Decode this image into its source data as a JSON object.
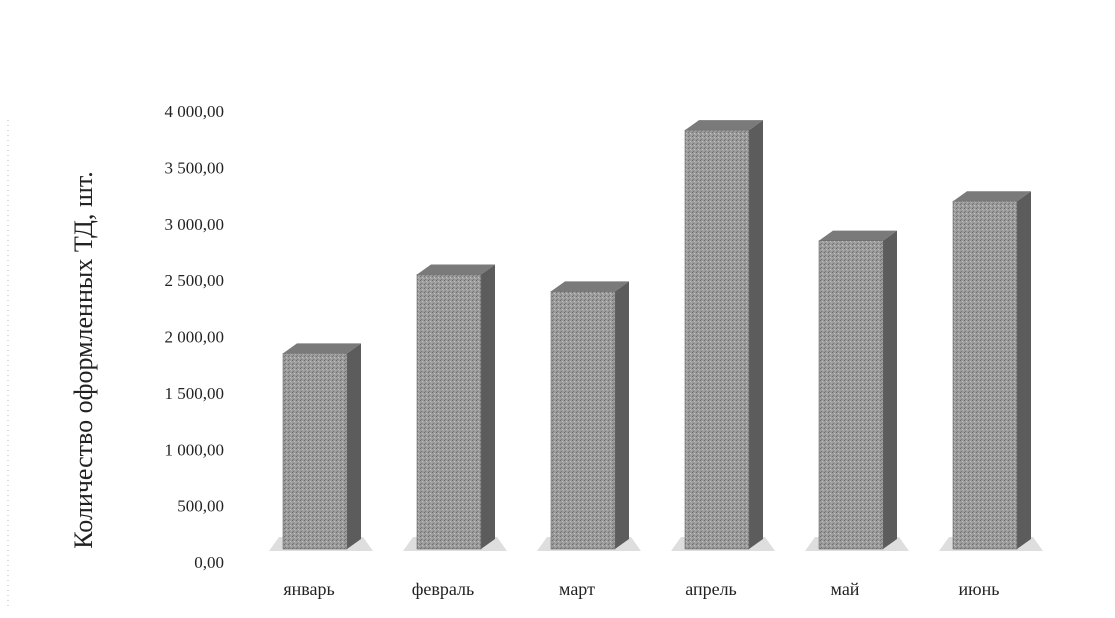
{
  "chart_data": {
    "type": "bar",
    "categories": [
      "январь",
      "февраль",
      "март",
      "апрель",
      "май",
      "июнь"
    ],
    "values": [
      1850,
      2550,
      2400,
      3830,
      2850,
      3200
    ],
    "ylabel": "Количество оформленных ТД, шт.",
    "yticks": [
      "0,00",
      "500,00",
      "1 000,00",
      "1 500,00",
      "2 000,00",
      "2 500,00",
      "3 000,00",
      "3 500,00",
      "4 000,00"
    ],
    "ylim": [
      0,
      4000
    ],
    "grid": false,
    "legend": "none",
    "colors": {
      "front": "#9a9a9a",
      "side": "#5c5c5c",
      "top": "#7a7a7a",
      "shadow": "#d6d6d6"
    }
  }
}
